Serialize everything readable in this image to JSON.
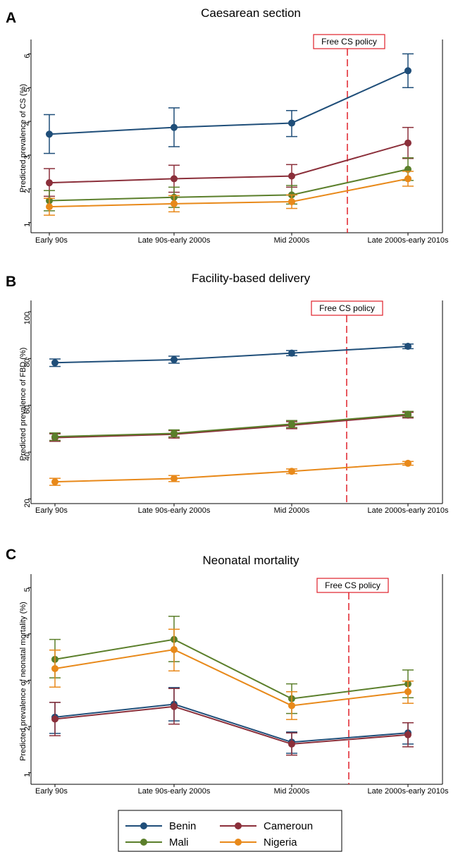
{
  "policy_label": "Free CS policy",
  "legend": [
    {
      "name": "Benin",
      "color": "#1f4e79"
    },
    {
      "name": "Cameroun",
      "color": "#8b2f3a"
    },
    {
      "name": "Mali",
      "color": "#5b7f2b"
    },
    {
      "name": "Nigeria",
      "color": "#e8891a"
    }
  ],
  "chart_data": [
    {
      "type": "line",
      "panel": "A",
      "title": "Caesarean section",
      "ylabel": "Predicted prevalence of CS (%)",
      "categories": [
        "Early 90s",
        "Late 90s-early 2000s",
        "Mid 2000s",
        "Late 2000s-early 2010s"
      ],
      "ylim": [
        0.7,
        6.3
      ],
      "yticks": [
        1,
        2,
        3,
        4,
        5,
        6
      ],
      "policy_x": 2.5,
      "series": [
        {
          "name": "Benin",
          "values": [
            3.62,
            3.82,
            3.95,
            5.5
          ],
          "lower": [
            3.05,
            3.25,
            3.55,
            5.0
          ],
          "upper": [
            4.2,
            4.4,
            4.32,
            6.0
          ]
        },
        {
          "name": "Cameroun",
          "values": [
            2.18,
            2.3,
            2.38,
            3.36
          ],
          "lower": [
            1.78,
            1.9,
            2.05,
            2.9
          ],
          "upper": [
            2.6,
            2.7,
            2.72,
            3.82
          ]
        },
        {
          "name": "Mali",
          "values": [
            1.65,
            1.75,
            1.82,
            2.58
          ],
          "lower": [
            1.35,
            1.45,
            1.55,
            2.25
          ],
          "upper": [
            1.95,
            2.05,
            2.1,
            2.92
          ]
        },
        {
          "name": "Nigeria",
          "values": [
            1.47,
            1.56,
            1.62,
            2.3
          ],
          "lower": [
            1.22,
            1.32,
            1.42,
            2.08
          ],
          "upper": [
            1.72,
            1.8,
            1.82,
            2.52
          ]
        }
      ]
    },
    {
      "type": "line",
      "panel": "B",
      "title": "Facility-based delivery",
      "ylabel": "Predicted prevalence of FBD (%)",
      "categories": [
        "Early 90s",
        "Late 90s-early 2000s",
        "Mid 2000s",
        "Late 2000s-early 2010s"
      ],
      "ylim": [
        18,
        103
      ],
      "yticks": [
        20,
        40,
        60,
        80,
        100
      ],
      "policy_x": 2.5,
      "series": [
        {
          "name": "Benin",
          "values": [
            78.2,
            79.5,
            82.3,
            85.2
          ],
          "lower": [
            76.6,
            78.0,
            81.2,
            84.2
          ],
          "upper": [
            79.8,
            81.0,
            83.4,
            86.2
          ]
        },
        {
          "name": "Cameroun",
          "values": [
            46.2,
            47.6,
            51.5,
            55.8
          ],
          "lower": [
            44.6,
            46.0,
            50.0,
            54.6
          ],
          "upper": [
            47.8,
            49.2,
            53.0,
            57.0
          ]
        },
        {
          "name": "Mali",
          "values": [
            46.6,
            48.0,
            52.0,
            56.2
          ],
          "lower": [
            45.0,
            46.5,
            50.5,
            55.0
          ],
          "upper": [
            48.2,
            49.5,
            53.5,
            57.4
          ]
        },
        {
          "name": "Nigeria",
          "values": [
            27.3,
            28.7,
            31.8,
            35.2
          ],
          "lower": [
            25.8,
            27.4,
            30.8,
            34.4
          ],
          "upper": [
            28.8,
            30.0,
            32.8,
            36.0
          ]
        }
      ]
    },
    {
      "type": "line",
      "panel": "C",
      "title": "Neonatal mortality",
      "ylabel": "Predicted prevalence of neonatal mortality (%)",
      "categories": [
        "Early 90s",
        "Late 90s-early 2000s",
        "Mid 2000s",
        "Late 2000s-early 2010s"
      ],
      "ylim": [
        0.75,
        5.2
      ],
      "yticks": [
        1,
        2,
        3,
        4,
        5
      ],
      "policy_x": 2.5,
      "series": [
        {
          "name": "Benin",
          "values": [
            2.2,
            2.48,
            1.66,
            1.86
          ],
          "lower": [
            1.85,
            2.12,
            1.42,
            1.62
          ],
          "upper": [
            2.52,
            2.84,
            1.88,
            2.08
          ]
        },
        {
          "name": "Cameroun",
          "values": [
            2.16,
            2.43,
            1.62,
            1.82
          ],
          "lower": [
            1.8,
            2.05,
            1.38,
            1.56
          ],
          "upper": [
            2.52,
            2.82,
            1.86,
            2.08
          ]
        },
        {
          "name": "Mali",
          "values": [
            3.45,
            3.88,
            2.6,
            2.92
          ],
          "lower": [
            3.05,
            3.4,
            2.28,
            2.62
          ],
          "upper": [
            3.88,
            4.38,
            2.92,
            3.22
          ]
        },
        {
          "name": "Nigeria",
          "values": [
            3.25,
            3.66,
            2.45,
            2.75
          ],
          "lower": [
            2.85,
            3.2,
            2.15,
            2.5
          ],
          "upper": [
            3.65,
            4.1,
            2.75,
            2.98
          ]
        }
      ]
    }
  ]
}
